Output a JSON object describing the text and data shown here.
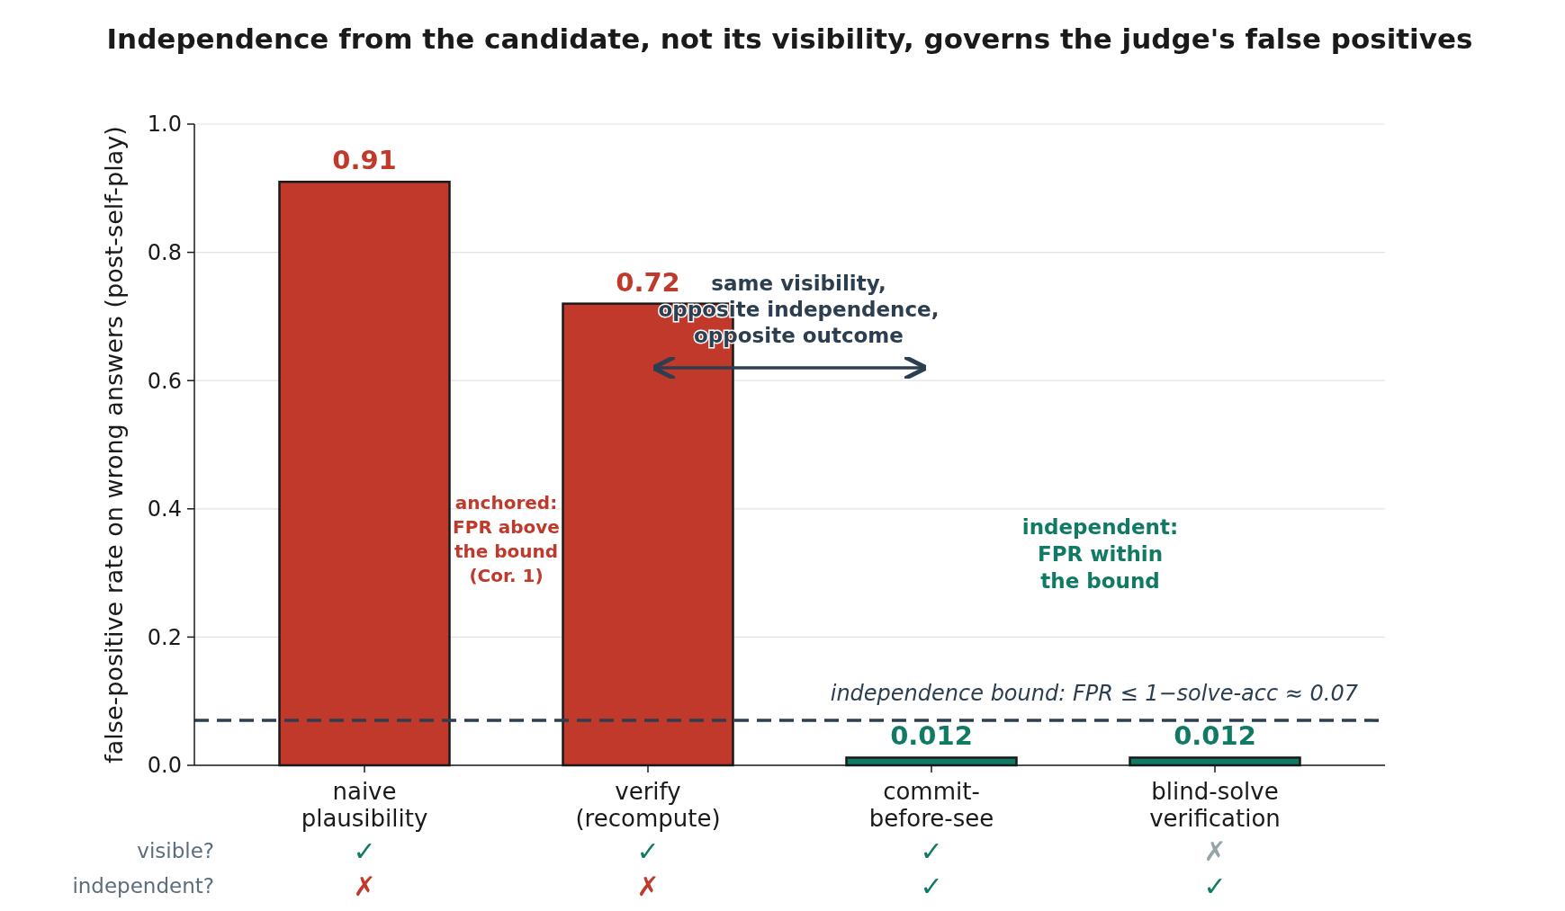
{
  "chart_data": {
    "type": "bar",
    "title": "Independence from the candidate, not its visibility, governs the judge's false positives",
    "ylabel": "false-positive rate on wrong answers (post-self-play)",
    "categories": [
      "naive\nplausibility",
      "verify\n(recompute)",
      "commit-\nbefore-see",
      "blind-solve\nverification"
    ],
    "values": [
      0.91,
      0.72,
      0.012,
      0.012
    ],
    "colors": [
      "#c0392b",
      "#c0392b",
      "#117a65",
      "#117a65"
    ],
    "data_labels": true,
    "ylim": [
      0,
      1
    ],
    "yticks": [
      {
        "value": 0,
        "label": "0.0"
      },
      {
        "value": 0.2,
        "label": "0.2"
      },
      {
        "value": 0.4,
        "label": "0.4"
      },
      {
        "value": 0.6,
        "label": "0.6"
      },
      {
        "value": 0.8,
        "label": "0.8"
      },
      {
        "value": 1,
        "label": "1.0"
      }
    ],
    "grid": "y",
    "ref_lines": [
      {
        "axis": "y",
        "value": 0.07,
        "label": "independence bound:  FPR ≤ 1−solve-acc ≈ 0.07",
        "color": "#2c3e50",
        "line_style": "dashed"
      }
    ],
    "annotations": [
      "anchored:\nFPR above\nthe bound\n(Cor. 1)",
      "same visibility,\nopposite independence,\nopposite outcome",
      "independent:\nFPR within\nthe bound",
      "visible?",
      "✓",
      "✓",
      "✓",
      "✗",
      "independent?",
      "✗",
      "✗",
      "✓",
      "✓"
    ]
  }
}
